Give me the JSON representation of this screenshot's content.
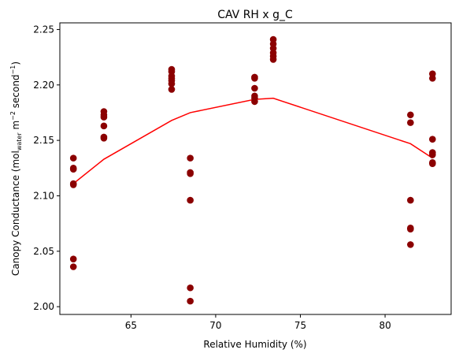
{
  "chart_data": {
    "type": "scatter",
    "title": "CAV RH x g_C",
    "xlabel": "Relative Humidity (%)",
    "ylabel": {
      "prefix": "Canopy Conductance (mol",
      "sub": "water",
      "mid1": " m",
      "sup1": "−2",
      "mid2": " second",
      "sup2": "−1",
      "suffix": ")"
    },
    "xlim": [
      60.8,
      83.9
    ],
    "ylim": [
      1.993,
      2.256
    ],
    "xticks": [
      65,
      70,
      75,
      80
    ],
    "xtick_labels": [
      "65",
      "70",
      "75",
      "80"
    ],
    "yticks": [
      2.0,
      2.05,
      2.1,
      2.15,
      2.2,
      2.25
    ],
    "ytick_labels": [
      "2.00",
      "2.05",
      "2.10",
      "2.15",
      "2.20",
      "2.25"
    ],
    "grid": false,
    "legend": false,
    "colors": {
      "points": "#8b0000",
      "line": "#ff0000"
    },
    "series": [
      {
        "type": "scatter",
        "points": [
          [
            61.6,
            2.134
          ],
          [
            61.6,
            2.125
          ],
          [
            61.6,
            2.124
          ],
          [
            61.6,
            2.111
          ],
          [
            61.6,
            2.11
          ],
          [
            61.6,
            2.043
          ],
          [
            61.6,
            2.036
          ],
          [
            63.4,
            2.176
          ],
          [
            63.4,
            2.173
          ],
          [
            63.4,
            2.171
          ],
          [
            63.4,
            2.163
          ],
          [
            63.4,
            2.153
          ],
          [
            63.4,
            2.152
          ],
          [
            67.4,
            2.214
          ],
          [
            67.4,
            2.212
          ],
          [
            67.4,
            2.208
          ],
          [
            67.4,
            2.206
          ],
          [
            67.4,
            2.204
          ],
          [
            67.4,
            2.201
          ],
          [
            67.4,
            2.196
          ],
          [
            68.5,
            2.134
          ],
          [
            68.5,
            2.121
          ],
          [
            68.5,
            2.12
          ],
          [
            68.5,
            2.096
          ],
          [
            68.5,
            2.017
          ],
          [
            68.5,
            2.005
          ],
          [
            72.3,
            2.207
          ],
          [
            72.3,
            2.206
          ],
          [
            72.3,
            2.197
          ],
          [
            72.3,
            2.19
          ],
          [
            72.3,
            2.188
          ],
          [
            72.3,
            2.185
          ],
          [
            73.4,
            2.241
          ],
          [
            73.4,
            2.237
          ],
          [
            73.4,
            2.233
          ],
          [
            73.4,
            2.229
          ],
          [
            73.4,
            2.226
          ],
          [
            73.4,
            2.223
          ],
          [
            81.5,
            2.173
          ],
          [
            81.5,
            2.166
          ],
          [
            81.5,
            2.096
          ],
          [
            81.5,
            2.071
          ],
          [
            81.5,
            2.07
          ],
          [
            81.5,
            2.056
          ],
          [
            82.8,
            2.21
          ],
          [
            82.8,
            2.206
          ],
          [
            82.8,
            2.151
          ],
          [
            82.8,
            2.139
          ],
          [
            82.8,
            2.137
          ],
          [
            82.8,
            2.13
          ],
          [
            82.8,
            2.129
          ]
        ]
      },
      {
        "type": "line",
        "points": [
          [
            61.6,
            2.111
          ],
          [
            63.4,
            2.133
          ],
          [
            67.4,
            2.168
          ],
          [
            68.5,
            2.175
          ],
          [
            72.3,
            2.187
          ],
          [
            73.4,
            2.188
          ],
          [
            81.5,
            2.147
          ],
          [
            82.8,
            2.134
          ]
        ]
      }
    ]
  }
}
